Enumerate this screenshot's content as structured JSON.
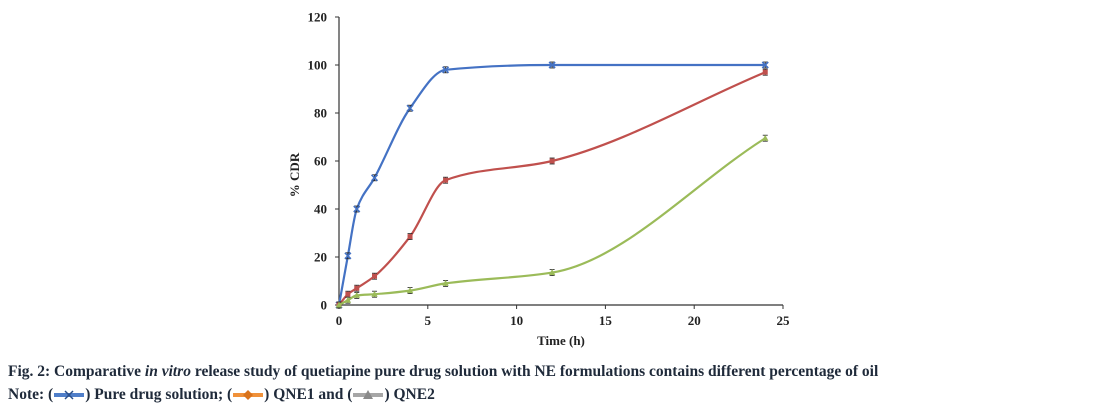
{
  "chart_data": {
    "type": "line",
    "xlabel": "Time (h)",
    "ylabel": "% CDR",
    "xlim": [
      0,
      25
    ],
    "ylim": [
      0,
      120
    ],
    "xticks": [
      0,
      5,
      10,
      15,
      20,
      25
    ],
    "yticks": [
      0,
      20,
      40,
      60,
      80,
      100,
      120
    ],
    "grid": false,
    "series": [
      {
        "name": "Pure drug solution",
        "color": "#4472c4",
        "marker": "x",
        "x": [
          0,
          0.5,
          1,
          2,
          4,
          6,
          12,
          24
        ],
        "y": [
          0,
          20.5,
          40,
          53,
          82,
          98,
          100,
          100
        ]
      },
      {
        "name": "QNE1",
        "color": "#c0504d",
        "marker": "square",
        "x": [
          0,
          0.5,
          1,
          2,
          4,
          6,
          12,
          24
        ],
        "y": [
          0,
          4.5,
          7,
          12,
          28.5,
          52,
          60,
          97
        ]
      },
      {
        "name": "QNE2",
        "color": "#9bbb59",
        "marker": "triangle",
        "x": [
          0,
          0.5,
          1,
          2,
          4,
          6,
          12,
          24
        ],
        "y": [
          0,
          2,
          4,
          4.5,
          6,
          9,
          13.5,
          69.5
        ]
      }
    ]
  },
  "caption": {
    "line1_prefix": "Fig. 2: Comparative ",
    "line1_italic": "in vitro",
    "line1_suffix": " release study of quetiapine pure drug solution with NE formulations contains different percentage of oil",
    "note_label": "Note: (",
    "legend_items": [
      {
        "label": ") Pure drug solution; (",
        "color": "#4f7ec9",
        "marker": "x"
      },
      {
        "label": ") QNE1 and (",
        "color": "#f0913a",
        "marker": "diamond"
      },
      {
        "label": ") QNE2",
        "color": "#a6a6a6",
        "marker": "triangle"
      }
    ]
  }
}
